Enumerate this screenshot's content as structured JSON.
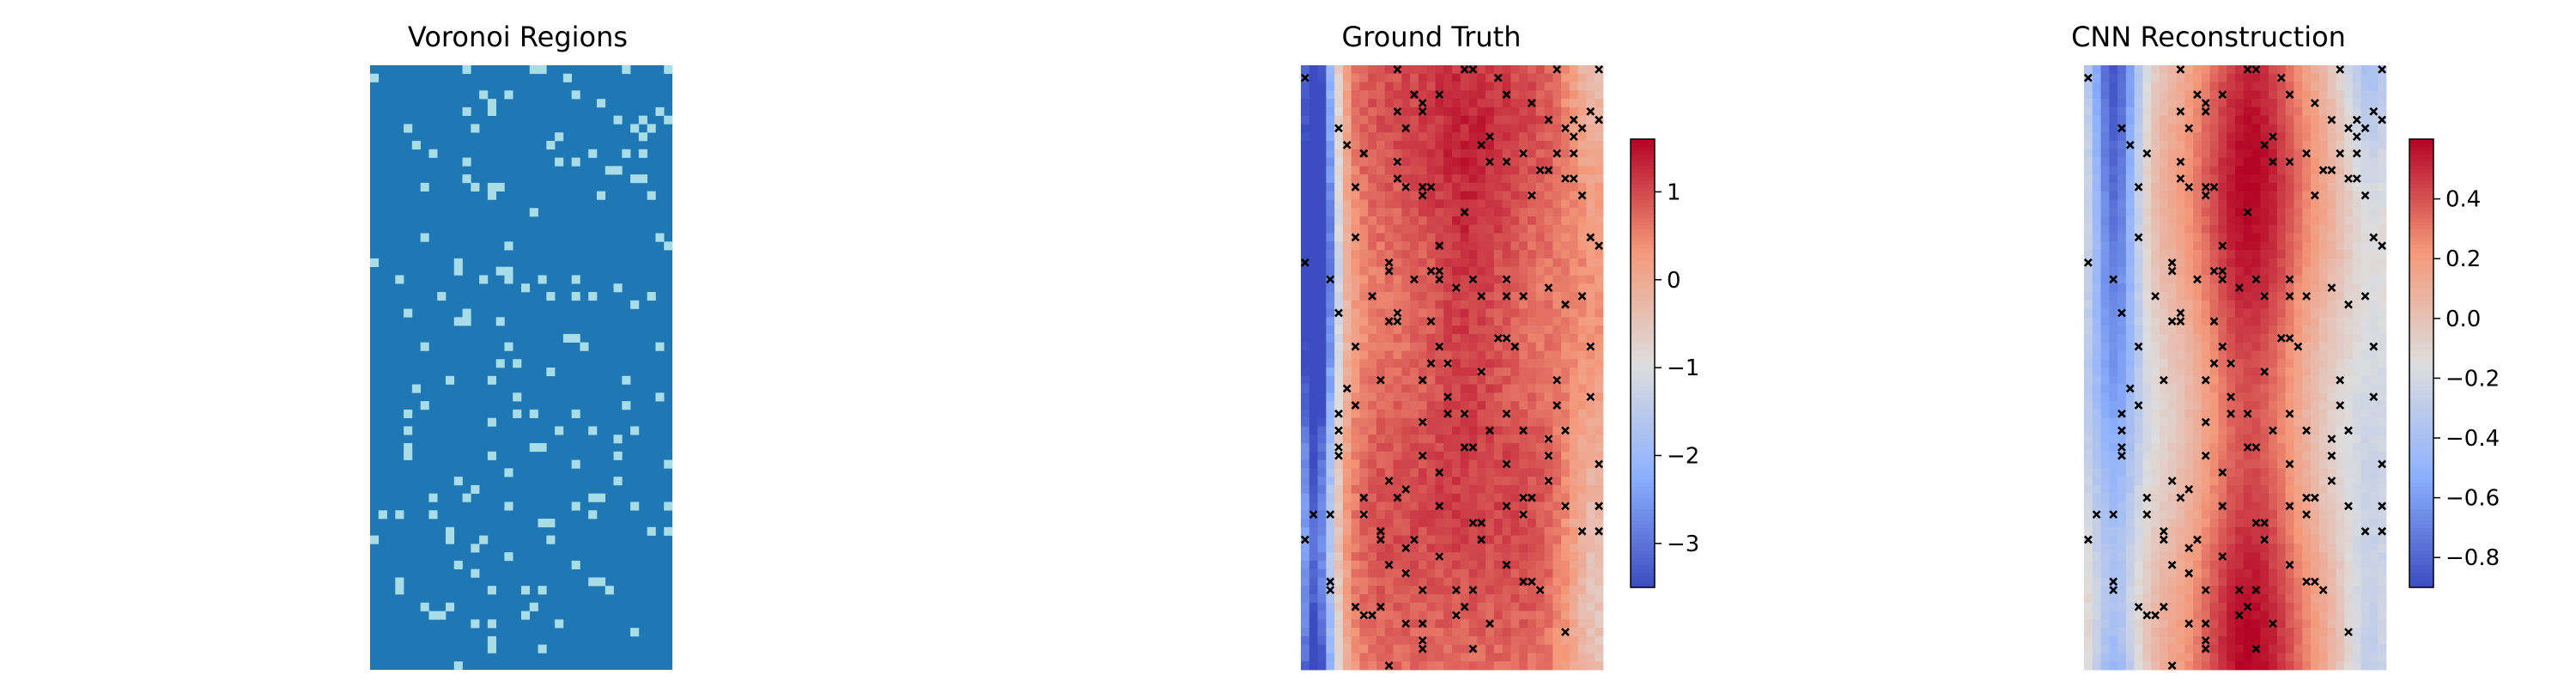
{
  "colors": {
    "voronoi_base": "#1f77b4",
    "voronoi_marker": "#a8dde8",
    "coolwarm_low": "#3b4cc0",
    "coolwarm_mid": "#dddddd",
    "coolwarm_high": "#b40426",
    "sensor_marker": "#000000"
  },
  "chart_data": [
    {
      "type": "heatmap",
      "title": "Voronoi Regions",
      "grid": {
        "cols": 36,
        "rows": 72
      },
      "sensor_count": 160,
      "colorbar": null
    },
    {
      "type": "heatmap",
      "title": "Ground Truth",
      "grid": {
        "cols": 36,
        "rows": 72
      },
      "value_range": [
        -3.5,
        1.6
      ],
      "colorbar": {
        "ticks": [
          1,
          0,
          -1,
          -2,
          -3
        ],
        "tick_labels": [
          "1",
          "0",
          "−1",
          "−2",
          "−3"
        ]
      },
      "markers": "x (sensor locations)"
    },
    {
      "type": "heatmap",
      "title": "CNN Reconstruction",
      "grid": {
        "cols": 36,
        "rows": 72
      },
      "value_range": [
        -0.9,
        0.6
      ],
      "colorbar": {
        "ticks": [
          0.4,
          0.2,
          0.0,
          -0.2,
          -0.4,
          -0.6,
          -0.8
        ],
        "tick_labels": [
          "0.4",
          "0.2",
          "0.0",
          "−0.2",
          "−0.4",
          "−0.6",
          "−0.8"
        ]
      },
      "markers": "x (sensor locations)"
    }
  ]
}
